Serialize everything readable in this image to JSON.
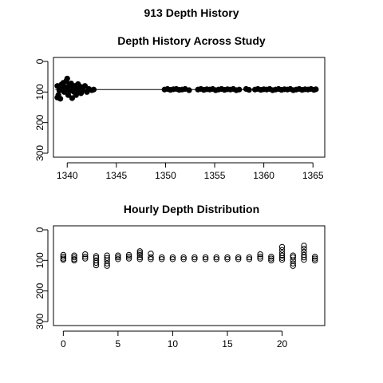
{
  "figure": {
    "title": "913 Depth History"
  },
  "chart_data": [
    {
      "type": "scatter",
      "title": "Depth History Across Study",
      "xlabel": "",
      "ylabel": "",
      "xlim": [
        1338.6,
        1366.2
      ],
      "ylim": [
        300,
        0
      ],
      "y_reversed": true,
      "xticks": [
        1340,
        1345,
        1350,
        1355,
        1360,
        1365
      ],
      "yticks": [
        0,
        100,
        200,
        300
      ],
      "point_style": "filled",
      "reference_line": {
        "from_x": 1338.8,
        "to_x": 1365.4,
        "y": 92
      },
      "series": [
        {
          "points": [
            [
              1339.0,
              118
            ],
            [
              1339.0,
              80
            ],
            [
              1339.1,
              110
            ],
            [
              1339.2,
              95
            ],
            [
              1339.3,
              122
            ],
            [
              1339.4,
              76
            ],
            [
              1339.5,
              88
            ],
            [
              1339.6,
              70
            ],
            [
              1339.7,
              100
            ],
            [
              1339.8,
              84
            ],
            [
              1339.9,
              64
            ],
            [
              1340.0,
              92
            ],
            [
              1340.0,
              56
            ],
            [
              1340.1,
              110
            ],
            [
              1340.2,
              78
            ],
            [
              1340.3,
              96
            ],
            [
              1340.4,
              72
            ],
            [
              1340.5,
              120
            ],
            [
              1340.6,
              86
            ],
            [
              1340.7,
              100
            ],
            [
              1340.8,
              80
            ],
            [
              1340.9,
              110
            ],
            [
              1341.0,
              88
            ],
            [
              1341.1,
              74
            ],
            [
              1341.2,
              98
            ],
            [
              1341.3,
              82
            ],
            [
              1341.4,
              104
            ],
            [
              1341.5,
              86
            ],
            [
              1341.6,
              94
            ],
            [
              1341.8,
              80
            ],
            [
              1342.0,
              100
            ],
            [
              1342.2,
              90
            ],
            [
              1342.5,
              94
            ],
            [
              1342.7,
              92
            ],
            [
              1349.9,
              92
            ],
            [
              1350.2,
              90
            ],
            [
              1350.5,
              93
            ],
            [
              1350.8,
              91
            ],
            [
              1351.1,
              90
            ],
            [
              1351.4,
              93
            ],
            [
              1351.7,
              92
            ],
            [
              1352.0,
              90
            ],
            [
              1352.4,
              94
            ],
            [
              1353.3,
              92
            ],
            [
              1353.6,
              90
            ],
            [
              1353.9,
              93
            ],
            [
              1354.2,
              91
            ],
            [
              1354.5,
              92
            ],
            [
              1354.8,
              90
            ],
            [
              1355.1,
              94
            ],
            [
              1355.4,
              92
            ],
            [
              1355.7,
              90
            ],
            [
              1356.0,
              93
            ],
            [
              1356.3,
              91
            ],
            [
              1356.6,
              92
            ],
            [
              1356.9,
              90
            ],
            [
              1357.2,
              94
            ],
            [
              1357.5,
              92
            ],
            [
              1358.2,
              90
            ],
            [
              1358.5,
              93
            ],
            [
              1359.1,
              92
            ],
            [
              1359.4,
              90
            ],
            [
              1359.7,
              93
            ],
            [
              1360.0,
              91
            ],
            [
              1360.3,
              92
            ],
            [
              1360.6,
              90
            ],
            [
              1360.9,
              94
            ],
            [
              1361.2,
              92
            ],
            [
              1361.5,
              90
            ],
            [
              1361.8,
              93
            ],
            [
              1362.1,
              91
            ],
            [
              1362.4,
              92
            ],
            [
              1362.7,
              90
            ],
            [
              1363.0,
              94
            ],
            [
              1363.3,
              92
            ],
            [
              1363.6,
              90
            ],
            [
              1363.9,
              93
            ],
            [
              1364.2,
              91
            ],
            [
              1364.5,
              92
            ],
            [
              1364.8,
              90
            ],
            [
              1365.1,
              93
            ],
            [
              1365.3,
              91
            ]
          ]
        }
      ]
    },
    {
      "type": "scatter",
      "title": "Hourly Depth Distribution",
      "xlabel": "",
      "ylabel": "",
      "xlim": [
        -0.9,
        23.9
      ],
      "ylim": [
        300,
        0
      ],
      "y_reversed": true,
      "xticks": [
        0,
        5,
        10,
        15,
        20
      ],
      "yticks": [
        0,
        100,
        200,
        300
      ],
      "point_style": "open",
      "series": [
        {
          "points": [
            [
              0,
              82
            ],
            [
              0,
              88
            ],
            [
              0,
              94
            ],
            [
              0,
              98
            ],
            [
              1,
              84
            ],
            [
              1,
              90
            ],
            [
              1,
              96
            ],
            [
              1,
              100
            ],
            [
              2,
              80
            ],
            [
              2,
              88
            ],
            [
              2,
              94
            ],
            [
              3,
              86
            ],
            [
              3,
              92
            ],
            [
              3,
              100
            ],
            [
              3,
              108
            ],
            [
              3,
              116
            ],
            [
              4,
              84
            ],
            [
              4,
              92
            ],
            [
              4,
              100
            ],
            [
              4,
              110
            ],
            [
              4,
              118
            ],
            [
              5,
              84
            ],
            [
              5,
              90
            ],
            [
              5,
              96
            ],
            [
              6,
              82
            ],
            [
              6,
              88
            ],
            [
              6,
              94
            ],
            [
              7,
              70
            ],
            [
              7,
              76
            ],
            [
              7,
              82
            ],
            [
              7,
              90
            ],
            [
              7,
              96
            ],
            [
              8,
              78
            ],
            [
              8,
              90
            ],
            [
              8,
              96
            ],
            [
              9,
              90
            ],
            [
              9,
              96
            ],
            [
              10,
              90
            ],
            [
              10,
              96
            ],
            [
              11,
              90
            ],
            [
              11,
              96
            ],
            [
              12,
              90
            ],
            [
              12,
              96
            ],
            [
              13,
              90
            ],
            [
              13,
              96
            ],
            [
              14,
              90
            ],
            [
              14,
              96
            ],
            [
              15,
              90
            ],
            [
              15,
              96
            ],
            [
              16,
              90
            ],
            [
              16,
              96
            ],
            [
              17,
              90
            ],
            [
              17,
              96
            ],
            [
              18,
              80
            ],
            [
              18,
              88
            ],
            [
              18,
              94
            ],
            [
              19,
              88
            ],
            [
              19,
              94
            ],
            [
              19,
              100
            ],
            [
              20,
              56
            ],
            [
              20,
              66
            ],
            [
              20,
              76
            ],
            [
              20,
              84
            ],
            [
              20,
              92
            ],
            [
              20,
              98
            ],
            [
              21,
              84
            ],
            [
              21,
              90
            ],
            [
              21,
              100
            ],
            [
              21,
              110
            ],
            [
              21,
              118
            ],
            [
              22,
              52
            ],
            [
              22,
              62
            ],
            [
              22,
              72
            ],
            [
              22,
              82
            ],
            [
              22,
              90
            ],
            [
              22,
              98
            ],
            [
              23,
              88
            ],
            [
              23,
              94
            ],
            [
              23,
              100
            ]
          ]
        }
      ]
    }
  ]
}
